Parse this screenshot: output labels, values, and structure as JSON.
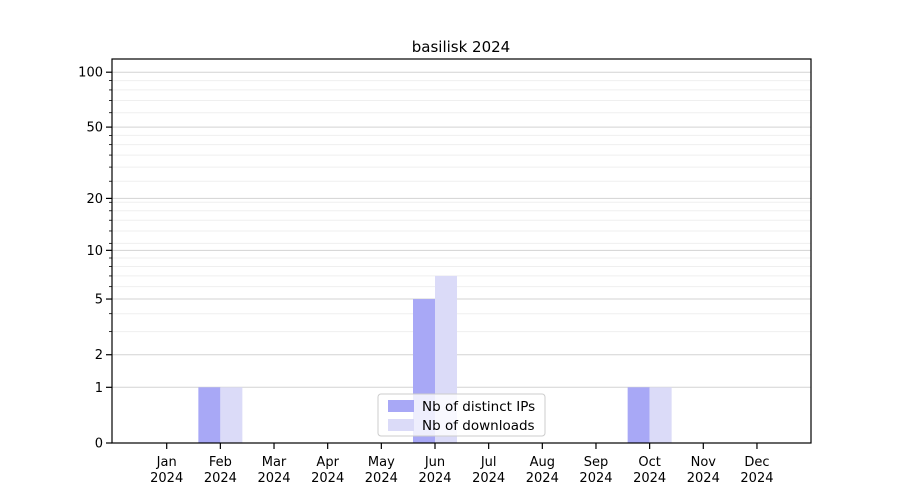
{
  "chart_data": {
    "type": "bar",
    "title": "basilisk 2024",
    "categories": [
      "Jan",
      "Feb",
      "Mar",
      "Apr",
      "May",
      "Jun",
      "Jul",
      "Aug",
      "Sep",
      "Oct",
      "Nov",
      "Dec"
    ],
    "year": "2024",
    "series": [
      {
        "name": "Nb of distinct IPs",
        "color": "#a8a8f6",
        "values": [
          0,
          1,
          0,
          0,
          0,
          5,
          0,
          0,
          0,
          1,
          0,
          0
        ]
      },
      {
        "name": "Nb of downloads",
        "color": "#dbdbf8",
        "values": [
          0,
          1,
          0,
          0,
          0,
          7,
          0,
          0,
          0,
          1,
          0,
          0
        ]
      }
    ],
    "xlabel": "",
    "ylabel": "",
    "yscale": "log1p",
    "ylim": [
      0,
      118
    ],
    "yticks": [
      0,
      1,
      2,
      5,
      10,
      20,
      50,
      100
    ],
    "yticks_minor": [
      3,
      4,
      6,
      7,
      8,
      9,
      11,
      13,
      15,
      17,
      19,
      25,
      30,
      35,
      40,
      45,
      60,
      70,
      80,
      90
    ],
    "grid": true,
    "legend_position": "lower center",
    "colors": {
      "bar_distinct_ips": "#a8a8f6",
      "bar_downloads": "#dbdbf8",
      "grid_major": "#d3d3d3",
      "grid_minor": "#efefef",
      "axis": "#000000",
      "text": "#000000",
      "legend_border": "#cccccc",
      "background": "#ffffff"
    }
  }
}
